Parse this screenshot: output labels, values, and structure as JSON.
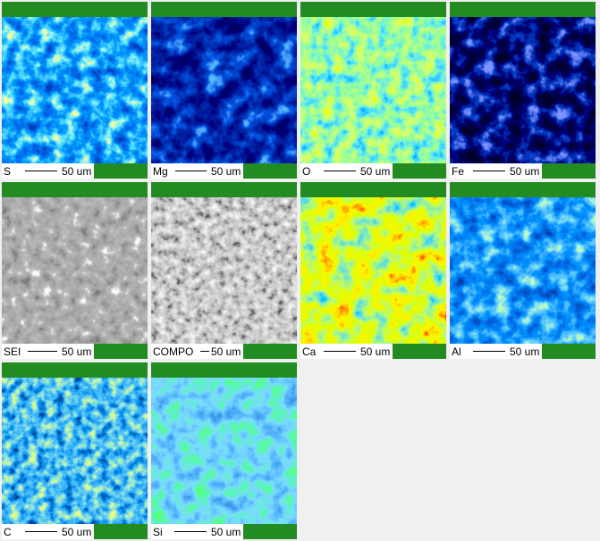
{
  "panels": [
    {
      "label": "S",
      "scale": "50 um"
    },
    {
      "label": "Mg",
      "scale": "50 um"
    },
    {
      "label": "O",
      "scale": "50 um"
    },
    {
      "label": "Fe",
      "scale": "50 um"
    },
    {
      "label": "SEI",
      "scale": "50 um"
    },
    {
      "label": "COMPO",
      "scale": "50 um"
    },
    {
      "label": "Ca",
      "scale": "50 um"
    },
    {
      "label": "Al",
      "scale": "50 um"
    },
    {
      "label": "C",
      "scale": "50 um"
    },
    {
      "label": "Si",
      "scale": "50 um"
    }
  ]
}
